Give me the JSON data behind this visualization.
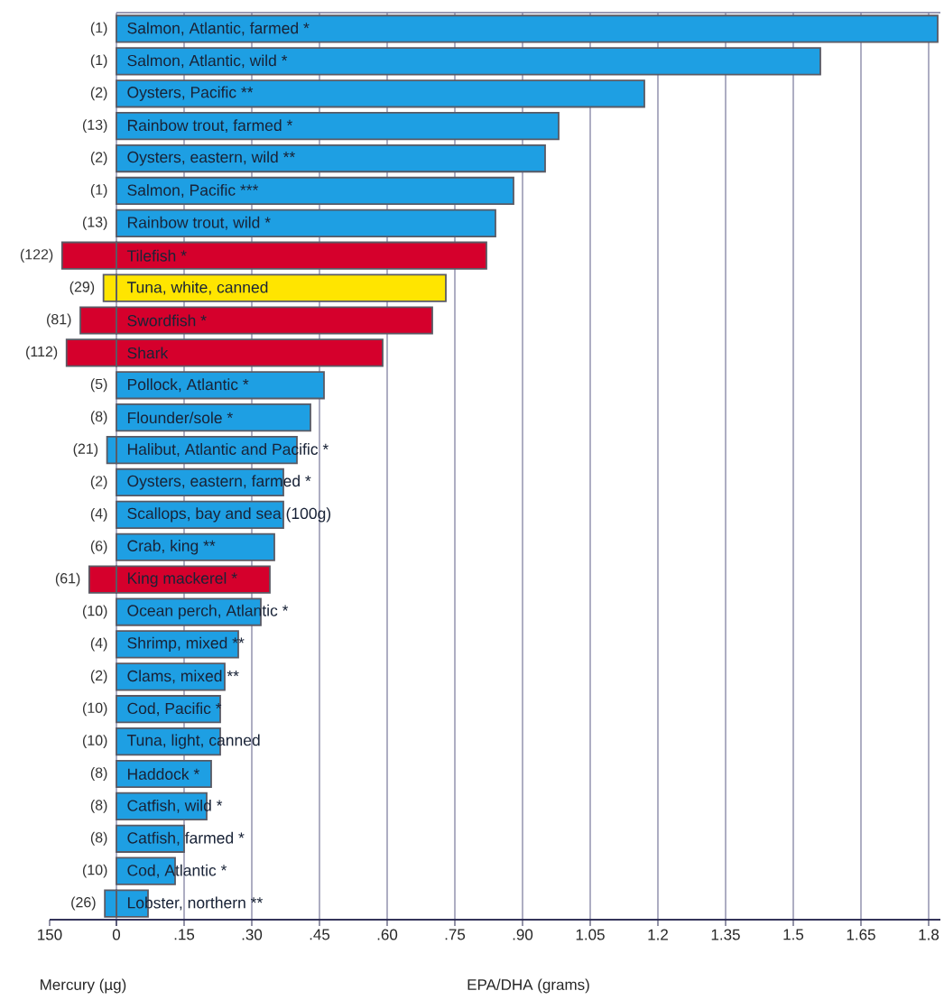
{
  "chart_data": {
    "type": "bar",
    "orientation": "horizontal",
    "xlabel": "EPA/DHA (grams)",
    "x2label": "Mercury (µg)",
    "categories": [
      "Salmon, Atlantic, farmed *",
      "Salmon, Atlantic, wild *",
      "Oysters, Pacific **",
      "Rainbow trout, farmed *",
      "Oysters, eastern, wild **",
      "Salmon, Pacific ***",
      "Rainbow trout, wild *",
      "Tilefish *",
      "Tuna, white, canned",
      "Swordfish *",
      "Shark",
      "Pollock, Atlantic *",
      "Flounder/sole *",
      "Halibut, Atlantic and Pacific *",
      "Oysters, eastern, farmed *",
      "Scallops, bay and sea (100g)",
      "Crab, king **",
      "King mackerel *",
      "Ocean perch, Atlantic *",
      "Shrimp, mixed **",
      "Clams, mixed **",
      "Cod, Pacific *",
      "Tuna, light, canned",
      "Haddock *",
      "Catfish, wild *",
      "Catfish, farmed *",
      "Cod, Atlantic *",
      "Lobster, northern **"
    ],
    "series": [
      {
        "values": [
          1.82,
          1.56,
          1.17,
          0.98,
          0.95,
          0.88,
          0.84,
          0.82,
          0.73,
          0.7,
          0.59,
          0.46,
          0.43,
          0.4,
          0.37,
          0.37,
          0.35,
          0.34,
          0.32,
          0.27,
          0.24,
          0.23,
          0.23,
          0.21,
          0.2,
          0.15,
          0.13,
          0.07
        ],
        "colors": [
          "#1e9fe3",
          "#1e9fe3",
          "#1e9fe3",
          "#1e9fe3",
          "#1e9fe3",
          "#1e9fe3",
          "#1e9fe3",
          "#d5002c",
          "#ffe500",
          "#d5002c",
          "#d5002c",
          "#1e9fe3",
          "#1e9fe3",
          "#1e9fe3",
          "#1e9fe3",
          "#1e9fe3",
          "#1e9fe3",
          "#d5002c",
          "#1e9fe3",
          "#1e9fe3",
          "#1e9fe3",
          "#1e9fe3",
          "#1e9fe3",
          "#1e9fe3",
          "#1e9fe3",
          "#1e9fe3",
          "#1e9fe3",
          "#1e9fe3"
        ]
      },
      {
        "axis": "x2",
        "values": [
          null,
          null,
          null,
          null,
          null,
          null,
          null,
          122,
          29,
          81,
          112,
          null,
          null,
          21,
          null,
          null,
          null,
          61,
          null,
          null,
          null,
          null,
          null,
          null,
          null,
          null,
          null,
          26
        ],
        "value_labels": [
          "(1)",
          "(1)",
          "(2)",
          "(13)",
          "(2)",
          "(1)",
          "(13)",
          "(122)",
          "(29)",
          "(81)",
          "(112)",
          "(5)",
          "(8)",
          "(21)",
          "(2)",
          "(4)",
          "(6)",
          "(61)",
          "(10)",
          "(4)",
          "(2)",
          "(10)",
          "(10)",
          "(8)",
          "(8)",
          "(8)",
          "(10)",
          "(26)"
        ],
        "colors": [
          "#1e9fe3",
          "#1e9fe3",
          "#1e9fe3",
          "#1e9fe3",
          "#1e9fe3",
          "#1e9fe3",
          "#1e9fe3",
          "#d5002c",
          "#ffe500",
          "#d5002c",
          "#d5002c",
          "#1e9fe3",
          "#1e9fe3",
          "#1e9fe3",
          "#1e9fe3",
          "#1e9fe3",
          "#1e9fe3",
          "#d5002c",
          "#1e9fe3",
          "#1e9fe3",
          "#1e9fe3",
          "#1e9fe3",
          "#1e9fe3",
          "#1e9fe3",
          "#1e9fe3",
          "#1e9fe3",
          "#1e9fe3",
          "#1e9fe3"
        ]
      }
    ],
    "xlim": [
      -0.148,
      1.826
    ],
    "xticks": [
      {
        "value": 0,
        "label": null
      },
      {
        "value": 0.15,
        "label": ".15"
      },
      {
        "value": 0.3,
        "label": ".30"
      },
      {
        "value": 0.45,
        "label": ".45"
      },
      {
        "value": 0.6,
        "label": ".60"
      },
      {
        "value": 0.75,
        "label": ".75"
      },
      {
        "value": 0.9,
        "label": ".90"
      },
      1.05,
      1.2,
      1.35,
      1.5,
      1.65,
      1.8
    ],
    "x2lim": [
      150,
      -1851
    ],
    "x2ticks": [
      150,
      0
    ],
    "grid": "x"
  }
}
